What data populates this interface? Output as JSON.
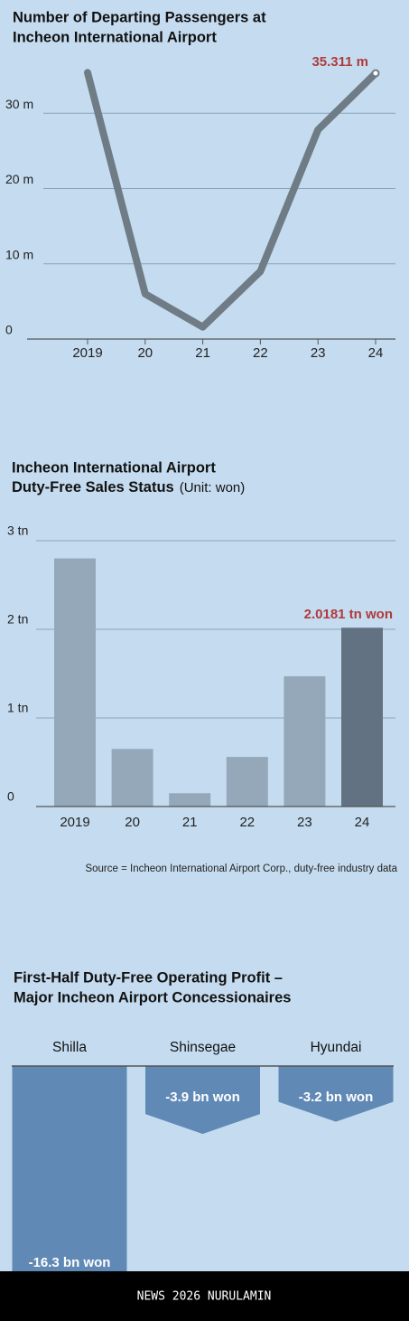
{
  "chart_data": [
    {
      "type": "line",
      "title": [
        "Number of Departing Passengers at",
        "Incheon International Airport"
      ],
      "categories": [
        "2019",
        "20",
        "21",
        "22",
        "23",
        "24"
      ],
      "values": [
        35.4,
        6.0,
        1.6,
        9.0,
        27.8,
        35.311
      ],
      "value_labels": [
        null,
        null,
        null,
        null,
        null,
        "35.311 m"
      ],
      "color": "#6f7c86",
      "ylim": [
        0,
        40
      ],
      "yticks": [
        {
          "value": 0,
          "label": "0"
        },
        {
          "value": 10,
          "label": "10 m"
        },
        {
          "value": 20,
          "label": "20 m"
        },
        {
          "value": 30,
          "label": "30 m"
        }
      ],
      "grid": true
    },
    {
      "type": "bar",
      "title": [
        "Incheon International Airport",
        "Duty-Free Sales Status"
      ],
      "subtitle": "(Unit: won)",
      "categories": [
        "2019",
        "20",
        "21",
        "22",
        "23",
        "24"
      ],
      "values": [
        2.8,
        0.65,
        0.15,
        0.56,
        1.47,
        2.0181
      ],
      "value_labels": [
        null,
        null,
        null,
        null,
        null,
        "2.0181 tn won"
      ],
      "colors": [
        "#94a8ba",
        "#94a8ba",
        "#94a8ba",
        "#94a8ba",
        "#94a8ba",
        "#637282"
      ],
      "ylim": [
        0,
        3
      ],
      "yticks": [
        {
          "value": 0,
          "label": "0"
        },
        {
          "value": 1,
          "label": "1 tn"
        },
        {
          "value": 2,
          "label": "2 tn"
        },
        {
          "value": 3,
          "label": "3 tn"
        }
      ],
      "grid": true,
      "source": "Source = Incheon International Airport Corp., duty-free industry data"
    },
    {
      "type": "pennant",
      "title": [
        "First-Half Duty-Free Operating Profit –",
        "Major Incheon Airport Concessionaires"
      ],
      "categories": [
        "Shilla",
        "Shinsegae",
        "Hyundai"
      ],
      "values": [
        -16.3,
        -3.9,
        -3.2
      ],
      "value_labels": [
        "-16.3 bn won",
        "-3.9 bn won",
        "-3.2 bn won"
      ],
      "color": "#6089b5",
      "ylim": [
        -12,
        0
      ]
    }
  ],
  "footer": "NEWS 2026 NURULAMIN"
}
